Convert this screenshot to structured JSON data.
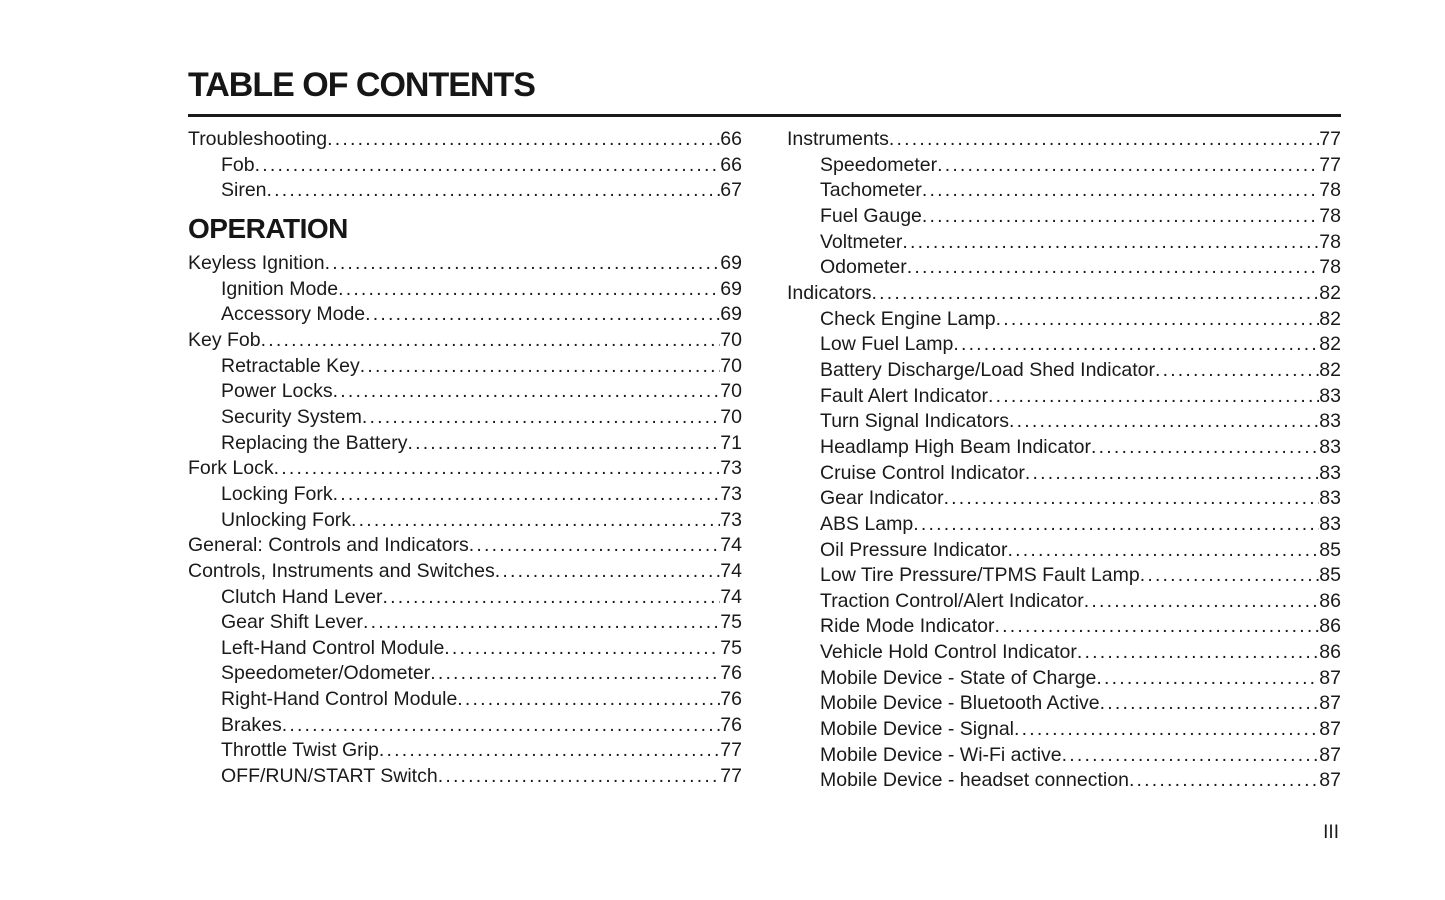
{
  "document": {
    "title": "TABLE OF CONTENTS",
    "folio": "III"
  },
  "toc": {
    "left": {
      "sections": [
        {
          "heading": "",
          "entries": [
            {
              "label": "Troubleshooting",
              "page": "66",
              "indent": 0
            },
            {
              "label": "Fob",
              "page": "66",
              "indent": 1
            },
            {
              "label": "Siren",
              "page": "67",
              "indent": 1
            }
          ]
        },
        {
          "heading": "OPERATION",
          "entries": [
            {
              "label": "Keyless Ignition",
              "page": "69",
              "indent": 0
            },
            {
              "label": "Ignition Mode",
              "page": "69",
              "indent": 1
            },
            {
              "label": "Accessory Mode",
              "page": "69",
              "indent": 1
            },
            {
              "label": "Key Fob",
              "page": "70",
              "indent": 0
            },
            {
              "label": "Retractable Key",
              "page": "70",
              "indent": 1
            },
            {
              "label": "Power Locks",
              "page": "70",
              "indent": 1
            },
            {
              "label": "Security System",
              "page": "70",
              "indent": 1
            },
            {
              "label": "Replacing the Battery",
              "page": "71",
              "indent": 1
            },
            {
              "label": "Fork Lock",
              "page": "73",
              "indent": 0
            },
            {
              "label": "Locking Fork",
              "page": "73",
              "indent": 1
            },
            {
              "label": "Unlocking Fork",
              "page": "73",
              "indent": 1
            },
            {
              "label": "General: Controls and Indicators",
              "page": "74",
              "indent": 0
            },
            {
              "label": "Controls, Instruments and Switches",
              "page": "74",
              "indent": 0
            },
            {
              "label": "Clutch Hand Lever",
              "page": "74",
              "indent": 1
            },
            {
              "label": "Gear Shift Lever",
              "page": "75",
              "indent": 1
            },
            {
              "label": "Left-Hand Control Module",
              "page": "75",
              "indent": 1
            },
            {
              "label": "Speedometer/Odometer",
              "page": "76",
              "indent": 1
            },
            {
              "label": "Right-Hand Control Module",
              "page": "76",
              "indent": 1
            },
            {
              "label": "Brakes",
              "page": "76",
              "indent": 1
            },
            {
              "label": "Throttle Twist Grip",
              "page": "77",
              "indent": 1
            },
            {
              "label": "OFF/RUN/START Switch",
              "page": "77",
              "indent": 1
            }
          ]
        }
      ]
    },
    "right": {
      "sections": [
        {
          "heading": "",
          "entries": [
            {
              "label": "Instruments",
              "page": "77",
              "indent": 0
            },
            {
              "label": "Speedometer",
              "page": "77",
              "indent": 1
            },
            {
              "label": "Tachometer",
              "page": "78",
              "indent": 1
            },
            {
              "label": "Fuel Gauge",
              "page": "78",
              "indent": 1
            },
            {
              "label": "Voltmeter",
              "page": "78",
              "indent": 1
            },
            {
              "label": "Odometer",
              "page": "78",
              "indent": 1
            },
            {
              "label": "Indicators",
              "page": "82",
              "indent": 0
            },
            {
              "label": "Check Engine Lamp",
              "page": "82",
              "indent": 1
            },
            {
              "label": "Low Fuel Lamp",
              "page": "82",
              "indent": 1
            },
            {
              "label": "Battery Discharge/Load Shed Indicator",
              "page": "82",
              "indent": 1
            },
            {
              "label": "Fault Alert Indicator",
              "page": "83",
              "indent": 1
            },
            {
              "label": "Turn Signal Indicators",
              "page": "83",
              "indent": 1
            },
            {
              "label": "Headlamp High Beam Indicator",
              "page": "83",
              "indent": 1
            },
            {
              "label": "Cruise Control Indicator",
              "page": "83",
              "indent": 1
            },
            {
              "label": "Gear Indicator",
              "page": "83",
              "indent": 1
            },
            {
              "label": "ABS Lamp",
              "page": "83",
              "indent": 1
            },
            {
              "label": "Oil Pressure Indicator",
              "page": "85",
              "indent": 1
            },
            {
              "label": "Low Tire Pressure/TPMS Fault Lamp",
              "page": "85",
              "indent": 1
            },
            {
              "label": "Traction Control/Alert Indicator",
              "page": "86",
              "indent": 1
            },
            {
              "label": "Ride Mode Indicator",
              "page": "86",
              "indent": 1
            },
            {
              "label": "Vehicle Hold Control Indicator",
              "page": "86",
              "indent": 1
            },
            {
              "label": "Mobile Device - State of Charge",
              "page": "87",
              "indent": 1
            },
            {
              "label": "Mobile Device - Bluetooth Active",
              "page": "87",
              "indent": 1
            },
            {
              "label": "Mobile Device - Signal",
              "page": "87",
              "indent": 1
            },
            {
              "label": "Mobile Device - Wi-Fi active",
              "page": "87",
              "indent": 1
            },
            {
              "label": "Mobile Device - headset connection",
              "page": "87",
              "indent": 1
            }
          ]
        }
      ]
    }
  }
}
